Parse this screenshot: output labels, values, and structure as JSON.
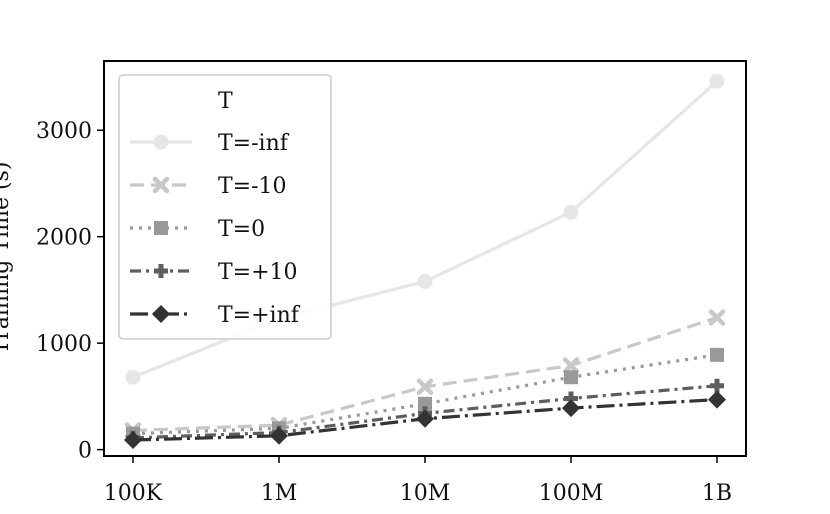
{
  "chart_data": {
    "type": "line",
    "x": [
      "100K",
      "1M",
      "10M",
      "100M",
      "1B"
    ],
    "ylabel": "Training Time (s)",
    "ylim": [
      -60,
      3650
    ],
    "yticks": [
      0,
      1000,
      2000,
      3000
    ],
    "grid": false,
    "legend": {
      "title": "T",
      "position": "top-left"
    },
    "series": [
      {
        "name": "T=-inf",
        "color": "#e6e6e6",
        "dash": "solid",
        "marker": "circle",
        "values": [
          680,
          1230,
          1580,
          2230,
          3460
        ]
      },
      {
        "name": "T=-10",
        "color": "#c8c8c8",
        "dash": "dashed",
        "marker": "x",
        "values": [
          180,
          230,
          590,
          790,
          1240
        ]
      },
      {
        "name": "T=0",
        "color": "#999999",
        "dash": "dotted",
        "marker": "square",
        "values": [
          150,
          200,
          430,
          680,
          890
        ]
      },
      {
        "name": "T=+10",
        "color": "#5e5e5e",
        "dash": "dashdot",
        "marker": "plus",
        "values": [
          110,
          160,
          340,
          480,
          600
        ]
      },
      {
        "name": "T=+inf",
        "color": "#333333",
        "dash": "longdashdot",
        "marker": "diamond",
        "values": [
          90,
          130,
          290,
          390,
          470
        ]
      }
    ]
  }
}
